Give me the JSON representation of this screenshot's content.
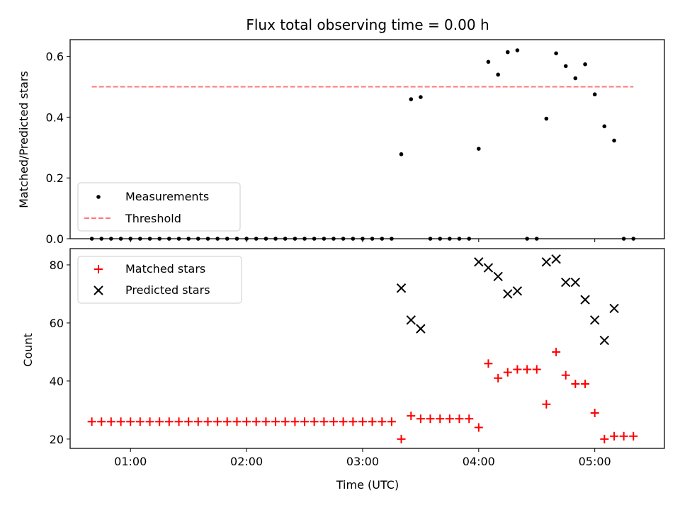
{
  "chart_data": [
    {
      "type": "scatter",
      "panel": "top",
      "title": "Flux total observing time = 0.00 h",
      "ylabel": "Matched/Predicted stars",
      "xlabel": "",
      "xlim": [
        0.48,
        5.6
      ],
      "ylim": [
        0,
        0.655
      ],
      "yticks": [
        "0.0",
        "0.2",
        "0.4",
        "0.6"
      ],
      "ytick_values": [
        0,
        0.2,
        0.4,
        0.6
      ],
      "xtick_values": [
        1,
        2,
        3,
        4,
        5
      ],
      "legend_location": "lower-left",
      "threshold": {
        "name": "Threshold",
        "value": 0.5,
        "x_range": [
          0.667,
          5.333
        ],
        "color": "#ff7777"
      },
      "series": [
        {
          "name": "Measurements",
          "color": "#000000",
          "marker": "dot",
          "points": [
            [
              0.667,
              0
            ],
            [
              0.75,
              0
            ],
            [
              0.833,
              0
            ],
            [
              0.917,
              0
            ],
            [
              1.0,
              0
            ],
            [
              1.083,
              0
            ],
            [
              1.167,
              0
            ],
            [
              1.25,
              0
            ],
            [
              1.333,
              0
            ],
            [
              1.417,
              0
            ],
            [
              1.5,
              0
            ],
            [
              1.583,
              0
            ],
            [
              1.667,
              0
            ],
            [
              1.75,
              0
            ],
            [
              1.833,
              0
            ],
            [
              1.917,
              0
            ],
            [
              2.0,
              0
            ],
            [
              2.083,
              0
            ],
            [
              2.167,
              0
            ],
            [
              2.25,
              0
            ],
            [
              2.333,
              0
            ],
            [
              2.417,
              0
            ],
            [
              2.5,
              0
            ],
            [
              2.583,
              0
            ],
            [
              2.667,
              0
            ],
            [
              2.75,
              0
            ],
            [
              2.833,
              0
            ],
            [
              2.917,
              0
            ],
            [
              3.0,
              0
            ],
            [
              3.083,
              0
            ],
            [
              3.167,
              0
            ],
            [
              3.25,
              0
            ],
            [
              3.333,
              0.278
            ],
            [
              3.417,
              0.459
            ],
            [
              3.5,
              0.466
            ],
            [
              3.583,
              0
            ],
            [
              3.667,
              0
            ],
            [
              3.75,
              0
            ],
            [
              3.833,
              0
            ],
            [
              3.917,
              0
            ],
            [
              4.0,
              0.296
            ],
            [
              4.083,
              0.582
            ],
            [
              4.167,
              0.54
            ],
            [
              4.25,
              0.614
            ],
            [
              4.333,
              0.62
            ],
            [
              4.417,
              0
            ],
            [
              4.5,
              0
            ],
            [
              4.583,
              0.395
            ],
            [
              4.667,
              0.61
            ],
            [
              4.75,
              0.568
            ],
            [
              4.833,
              0.528
            ],
            [
              4.917,
              0.574
            ],
            [
              5.0,
              0.475
            ],
            [
              5.083,
              0.37
            ],
            [
              5.167,
              0.323
            ],
            [
              5.25,
              0
            ],
            [
              5.333,
              0
            ]
          ]
        }
      ]
    },
    {
      "type": "scatter",
      "panel": "bottom",
      "title": "",
      "ylabel": "Count",
      "xlabel": "Time (UTC)",
      "xlim": [
        0.48,
        5.6
      ],
      "ylim": [
        16.8,
        85.6
      ],
      "yticks": [
        "20",
        "40",
        "60",
        "80"
      ],
      "ytick_values": [
        20,
        40,
        60,
        80
      ],
      "xticks": [
        "01:00",
        "02:00",
        "03:00",
        "04:00",
        "05:00"
      ],
      "xtick_values": [
        1,
        2,
        3,
        4,
        5
      ],
      "legend_location": "upper-left",
      "series": [
        {
          "name": "Matched stars",
          "color": "#ff0000",
          "marker": "plus",
          "points": [
            [
              0.667,
              26
            ],
            [
              0.75,
              26
            ],
            [
              0.833,
              26
            ],
            [
              0.917,
              26
            ],
            [
              1.0,
              26
            ],
            [
              1.083,
              26
            ],
            [
              1.167,
              26
            ],
            [
              1.25,
              26
            ],
            [
              1.333,
              26
            ],
            [
              1.417,
              26
            ],
            [
              1.5,
              26
            ],
            [
              1.583,
              26
            ],
            [
              1.667,
              26
            ],
            [
              1.75,
              26
            ],
            [
              1.833,
              26
            ],
            [
              1.917,
              26
            ],
            [
              2.0,
              26
            ],
            [
              2.083,
              26
            ],
            [
              2.167,
              26
            ],
            [
              2.25,
              26
            ],
            [
              2.333,
              26
            ],
            [
              2.417,
              26
            ],
            [
              2.5,
              26
            ],
            [
              2.583,
              26
            ],
            [
              2.667,
              26
            ],
            [
              2.75,
              26
            ],
            [
              2.833,
              26
            ],
            [
              2.917,
              26
            ],
            [
              3.0,
              26
            ],
            [
              3.083,
              26
            ],
            [
              3.167,
              26
            ],
            [
              3.25,
              26
            ],
            [
              3.333,
              20
            ],
            [
              3.417,
              28
            ],
            [
              3.5,
              27
            ],
            [
              3.583,
              27
            ],
            [
              3.667,
              27
            ],
            [
              3.75,
              27
            ],
            [
              3.833,
              27
            ],
            [
              3.917,
              27
            ],
            [
              4.0,
              24
            ],
            [
              4.083,
              46
            ],
            [
              4.167,
              41
            ],
            [
              4.25,
              43
            ],
            [
              4.333,
              44
            ],
            [
              4.417,
              44
            ],
            [
              4.5,
              44
            ],
            [
              4.583,
              32
            ],
            [
              4.667,
              50
            ],
            [
              4.75,
              42
            ],
            [
              4.833,
              39
            ],
            [
              4.917,
              39
            ],
            [
              5.0,
              29
            ],
            [
              5.083,
              20
            ],
            [
              5.167,
              21
            ],
            [
              5.25,
              21
            ],
            [
              5.333,
              21
            ]
          ]
        },
        {
          "name": "Predicted stars",
          "color": "#000000",
          "marker": "x",
          "points": [
            [
              3.333,
              72
            ],
            [
              3.417,
              61
            ],
            [
              3.5,
              58
            ],
            [
              4.0,
              81
            ],
            [
              4.083,
              79
            ],
            [
              4.167,
              76
            ],
            [
              4.25,
              70
            ],
            [
              4.333,
              71
            ],
            [
              4.583,
              81
            ],
            [
              4.667,
              82
            ],
            [
              4.75,
              74
            ],
            [
              4.833,
              74
            ],
            [
              4.917,
              68
            ],
            [
              5.0,
              61
            ],
            [
              5.083,
              54
            ],
            [
              5.167,
              65
            ]
          ]
        }
      ]
    }
  ]
}
